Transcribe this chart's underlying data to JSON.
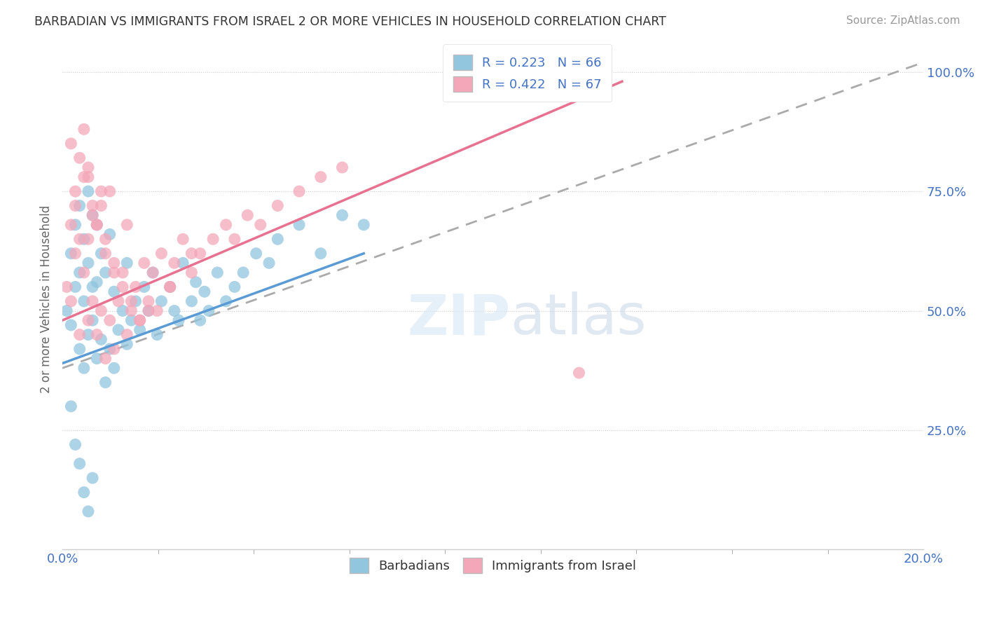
{
  "title": "BARBADIAN VS IMMIGRANTS FROM ISRAEL 2 OR MORE VEHICLES IN HOUSEHOLD CORRELATION CHART",
  "source": "Source: ZipAtlas.com",
  "ylabel": "2 or more Vehicles in Household",
  "xmin": 0.0,
  "xmax": 0.2,
  "ymin": 0.0,
  "ymax": 1.05,
  "legend_r1": "R = 0.223",
  "legend_n1": "N = 66",
  "legend_r2": "R = 0.422",
  "legend_n2": "N = 67",
  "color_blue": "#92C5DE",
  "color_pink": "#F4A7B9",
  "trendline_blue": "#5B9BD5",
  "trendline_pink": "#E87090",
  "trendline_dashed_color": "#AAAAAA",
  "background": "#FFFFFF",
  "blue_scatter_x": [
    0.001,
    0.002,
    0.002,
    0.003,
    0.003,
    0.004,
    0.004,
    0.004,
    0.005,
    0.005,
    0.005,
    0.006,
    0.006,
    0.006,
    0.007,
    0.007,
    0.007,
    0.008,
    0.008,
    0.008,
    0.009,
    0.009,
    0.01,
    0.01,
    0.011,
    0.011,
    0.012,
    0.012,
    0.013,
    0.014,
    0.015,
    0.015,
    0.016,
    0.017,
    0.018,
    0.019,
    0.02,
    0.021,
    0.022,
    0.023,
    0.025,
    0.026,
    0.027,
    0.028,
    0.03,
    0.031,
    0.032,
    0.033,
    0.034,
    0.036,
    0.038,
    0.04,
    0.042,
    0.045,
    0.048,
    0.05,
    0.055,
    0.06,
    0.065,
    0.07,
    0.002,
    0.003,
    0.004,
    0.005,
    0.006,
    0.007
  ],
  "blue_scatter_y": [
    0.5,
    0.62,
    0.47,
    0.55,
    0.68,
    0.42,
    0.58,
    0.72,
    0.38,
    0.52,
    0.65,
    0.45,
    0.6,
    0.75,
    0.48,
    0.55,
    0.7,
    0.4,
    0.56,
    0.68,
    0.44,
    0.62,
    0.35,
    0.58,
    0.42,
    0.66,
    0.38,
    0.54,
    0.46,
    0.5,
    0.43,
    0.6,
    0.48,
    0.52,
    0.46,
    0.55,
    0.5,
    0.58,
    0.45,
    0.52,
    0.55,
    0.5,
    0.48,
    0.6,
    0.52,
    0.56,
    0.48,
    0.54,
    0.5,
    0.58,
    0.52,
    0.55,
    0.58,
    0.62,
    0.6,
    0.65,
    0.68,
    0.62,
    0.7,
    0.68,
    0.3,
    0.22,
    0.18,
    0.12,
    0.08,
    0.15
  ],
  "pink_scatter_x": [
    0.001,
    0.002,
    0.002,
    0.003,
    0.003,
    0.004,
    0.004,
    0.005,
    0.005,
    0.006,
    0.006,
    0.006,
    0.007,
    0.007,
    0.008,
    0.008,
    0.009,
    0.009,
    0.01,
    0.01,
    0.011,
    0.011,
    0.012,
    0.012,
    0.013,
    0.014,
    0.015,
    0.015,
    0.016,
    0.017,
    0.018,
    0.019,
    0.02,
    0.021,
    0.022,
    0.023,
    0.025,
    0.026,
    0.028,
    0.03,
    0.032,
    0.035,
    0.038,
    0.04,
    0.043,
    0.046,
    0.05,
    0.055,
    0.06,
    0.065,
    0.002,
    0.003,
    0.004,
    0.005,
    0.006,
    0.007,
    0.008,
    0.009,
    0.01,
    0.012,
    0.014,
    0.016,
    0.018,
    0.02,
    0.025,
    0.03,
    0.12
  ],
  "pink_scatter_y": [
    0.55,
    0.68,
    0.52,
    0.62,
    0.72,
    0.45,
    0.65,
    0.58,
    0.78,
    0.48,
    0.65,
    0.8,
    0.52,
    0.7,
    0.45,
    0.68,
    0.5,
    0.72,
    0.4,
    0.65,
    0.48,
    0.75,
    0.42,
    0.6,
    0.52,
    0.58,
    0.45,
    0.68,
    0.5,
    0.55,
    0.48,
    0.6,
    0.52,
    0.58,
    0.5,
    0.62,
    0.55,
    0.6,
    0.65,
    0.58,
    0.62,
    0.65,
    0.68,
    0.65,
    0.7,
    0.68,
    0.72,
    0.75,
    0.78,
    0.8,
    0.85,
    0.75,
    0.82,
    0.88,
    0.78,
    0.72,
    0.68,
    0.75,
    0.62,
    0.58,
    0.55,
    0.52,
    0.48,
    0.5,
    0.55,
    0.62,
    0.37
  ],
  "blue_trend_x0": 0.0,
  "blue_trend_y0": 0.39,
  "blue_trend_x1": 0.07,
  "blue_trend_y1": 0.62,
  "pink_trend_x0": 0.0,
  "pink_trend_y0": 0.48,
  "pink_trend_x1": 0.13,
  "pink_trend_y1": 0.98,
  "dash_trend_x0": 0.0,
  "dash_trend_y0": 0.38,
  "dash_trend_x1": 0.2,
  "dash_trend_y1": 1.02
}
